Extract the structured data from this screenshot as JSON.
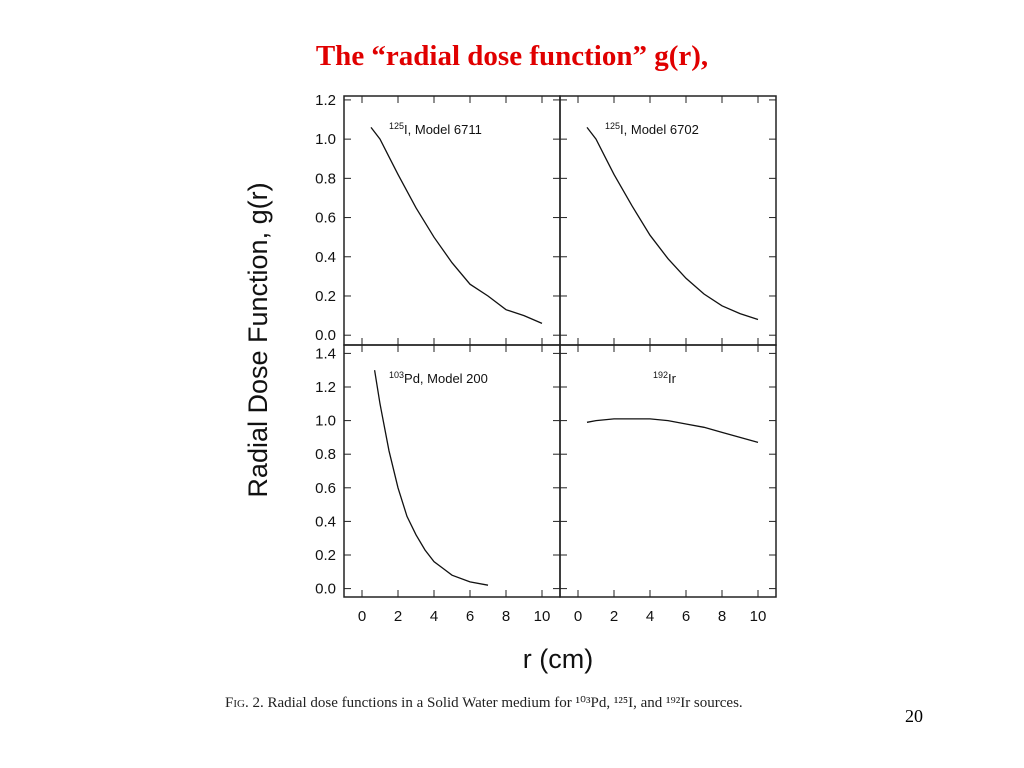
{
  "slide": {
    "title": "The “radial dose function” g(r),",
    "page_number": "20"
  },
  "caption": {
    "fig_label": "Fig. 2.",
    "text": "Radial dose functions in a Solid Water medium for ¹⁰³Pd, ¹²⁵I, and ¹⁹²Ir sources."
  },
  "chart_data": [
    {
      "type": "line",
      "panel": "top-left",
      "label_sup": "125",
      "label_main": "I, Model 6711",
      "xlabel": "r (cm)",
      "ylabel": "Radial Dose Function, g(r)",
      "xlim": [
        -1,
        11
      ],
      "ylim": [
        -0.05,
        1.22
      ],
      "x_ticks": [
        0,
        2,
        4,
        6,
        8,
        10
      ],
      "y_ticks": [
        "0.0",
        "0.2",
        "0.4",
        "0.6",
        "0.8",
        "1.0",
        "1.2"
      ],
      "series": [
        {
          "x": [
            0.5,
            1,
            1.5,
            2,
            3,
            4,
            5,
            6,
            7,
            8,
            9,
            10
          ],
          "y": [
            1.06,
            1.0,
            0.91,
            0.82,
            0.65,
            0.5,
            0.37,
            0.26,
            0.2,
            0.13,
            0.1,
            0.06
          ]
        }
      ]
    },
    {
      "type": "line",
      "panel": "top-right",
      "label_sup": "125",
      "label_main": "I, Model 6702",
      "xlim": [
        -1,
        11
      ],
      "ylim": [
        -0.05,
        1.22
      ],
      "series": [
        {
          "x": [
            0.5,
            1,
            1.5,
            2,
            3,
            4,
            5,
            6,
            7,
            8,
            9,
            10
          ],
          "y": [
            1.06,
            1.0,
            0.91,
            0.82,
            0.66,
            0.51,
            0.39,
            0.29,
            0.21,
            0.15,
            0.11,
            0.08
          ]
        }
      ]
    },
    {
      "type": "line",
      "panel": "bottom-left",
      "label_sup": "103",
      "label_main": "Pd, Model 200",
      "xlim": [
        -1,
        11
      ],
      "ylim": [
        -0.05,
        1.45
      ],
      "y_ticks": [
        "0.0",
        "0.2",
        "0.4",
        "0.6",
        "0.8",
        "1.0",
        "1.2",
        "1.4"
      ],
      "series": [
        {
          "x": [
            0.7,
            1,
            1.5,
            2,
            2.5,
            3,
            3.5,
            4,
            4.5,
            5,
            6,
            7
          ],
          "y": [
            1.3,
            1.1,
            0.82,
            0.6,
            0.43,
            0.32,
            0.23,
            0.16,
            0.12,
            0.08,
            0.04,
            0.02
          ]
        }
      ]
    },
    {
      "type": "line",
      "panel": "bottom-right",
      "label_sup": "192",
      "label_main": "Ir",
      "xlim": [
        -1,
        11
      ],
      "ylim": [
        -0.05,
        1.45
      ],
      "x_ticks": [
        0,
        2,
        4,
        6,
        8,
        10
      ],
      "series": [
        {
          "x": [
            0.5,
            1,
            2,
            3,
            4,
            5,
            6,
            7,
            8,
            9,
            10
          ],
          "y": [
            0.99,
            1.0,
            1.01,
            1.01,
            1.01,
            1.0,
            0.98,
            0.96,
            0.93,
            0.9,
            0.87
          ]
        }
      ]
    }
  ]
}
